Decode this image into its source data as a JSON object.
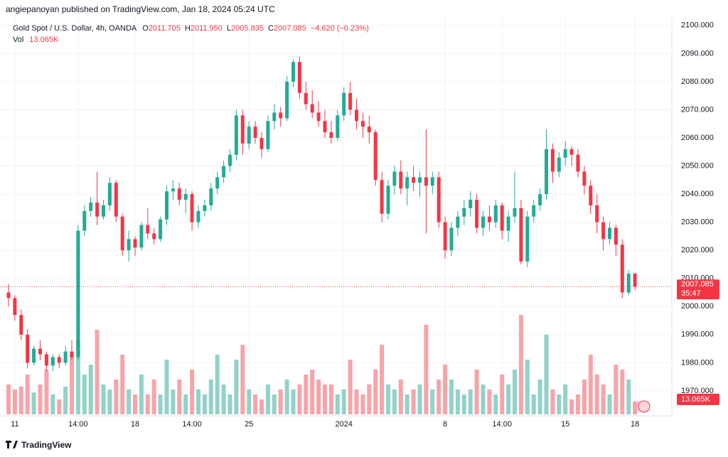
{
  "published": "angiepanoyan published on TradingView.com, Jan 18, 2024 05:24 UTC",
  "footer": "TradingView",
  "chart_data": {
    "type": "candlestick",
    "symbol": "Gold Spot / U.S. Dollar, 4h, OANDA",
    "legend": [
      {
        "key": "O",
        "value": "2011.705"
      },
      {
        "key": "H",
        "value": "2011.950"
      },
      {
        "key": "L",
        "value": "2005.835"
      },
      {
        "key": "C",
        "value": "2007.085"
      }
    ],
    "change": "−4.620 (−0.23%)",
    "volume_legend": {
      "key": "Vol",
      "value": "13.065K"
    },
    "last_price_label": "2007.085",
    "countdown": "35:47",
    "last_volume_label": "13.065K",
    "up_color": "#22ab94",
    "down_color": "#f23645",
    "up_volume_color": "#92d2c8",
    "down_volume_color": "#f7a4a8",
    "grid": true,
    "ylim": [
      1962.9,
      2103.5
    ],
    "yticks": [
      {
        "value": 1970,
        "label": "1970.000"
      },
      {
        "value": 1980,
        "label": "1980.000"
      },
      {
        "value": 1990,
        "label": "1990.000"
      },
      {
        "value": 2000,
        "label": "2000.000"
      },
      {
        "value": 2010,
        "label": "2010.000"
      },
      {
        "value": 2020,
        "label": "2020.000"
      },
      {
        "value": 2030,
        "label": "2030.000"
      },
      {
        "value": 2040,
        "label": "2040.000"
      },
      {
        "value": 2050,
        "label": "2050.000"
      },
      {
        "value": 2060,
        "label": "2060.000"
      },
      {
        "value": 2070,
        "label": "2070.000"
      },
      {
        "value": 2080,
        "label": "2080.000"
      },
      {
        "value": 2090,
        "label": "2090.000"
      },
      {
        "value": 2100,
        "label": "2100.000"
      }
    ],
    "categories": [
      null,
      "11",
      null,
      null,
      null,
      null,
      null,
      null,
      null,
      null,
      null,
      "14:00",
      null,
      null,
      null,
      null,
      null,
      null,
      null,
      null,
      "18",
      null,
      null,
      null,
      null,
      null,
      null,
      null,
      null,
      "14:00",
      null,
      null,
      null,
      null,
      null,
      null,
      null,
      null,
      "25",
      null,
      null,
      null,
      null,
      null,
      null,
      null,
      null,
      null,
      null,
      null,
      null,
      null,
      null,
      "2024",
      null,
      null,
      null,
      null,
      null,
      null,
      null,
      null,
      null,
      null,
      null,
      null,
      null,
      null,
      null,
      "8",
      null,
      null,
      null,
      null,
      null,
      null,
      null,
      null,
      "14:00",
      null,
      null,
      null,
      null,
      null,
      null,
      null,
      null,
      null,
      "15",
      null,
      null,
      null,
      null,
      null,
      null,
      null,
      null,
      null,
      null,
      "18"
    ],
    "open": [
      2005,
      2003,
      1997,
      1990,
      1980,
      1985,
      1983,
      1979,
      1982,
      1980,
      1984,
      1982,
      2027,
      2034,
      2037,
      2032,
      2036,
      2044,
      2032,
      2020,
      2024,
      2021,
      2029,
      2026,
      2024,
      2031,
      2041,
      2042,
      2038,
      2040,
      2030,
      2034,
      2036,
      2042,
      2046,
      2050,
      2054,
      2068,
      2058,
      2064,
      2060,
      2056,
      2066,
      2069,
      2067,
      2080,
      2087,
      2076,
      2072,
      2069,
      2066,
      2062,
      2060,
      2068,
      2076,
      2070,
      2066,
      2064,
      2062,
      2045,
      2033,
      2043,
      2048,
      2042,
      2046,
      2044,
      2046,
      2043,
      2046,
      2030,
      2020,
      2028,
      2032,
      2035,
      2038,
      2028,
      2032,
      2030,
      2036,
      2027,
      2032,
      2035,
      2016,
      2032,
      2036,
      2040,
      2056,
      2048,
      2053,
      2056,
      2054,
      2048,
      2043,
      2036,
      2030,
      2024,
      2028,
      2022,
      2005,
      2011.705
    ],
    "high": [
      2008,
      2004,
      1999,
      1992,
      1986,
      1988,
      1984,
      1983,
      1983,
      1986,
      1988,
      2029,
      2036,
      2039,
      2048,
      2038,
      2046,
      2045,
      2033,
      2027,
      2025,
      2030,
      2035,
      2028,
      2032,
      2043,
      2045,
      2044,
      2042,
      2041,
      2036,
      2038,
      2044,
      2048,
      2052,
      2056,
      2070,
      2070,
      2066,
      2066,
      2062,
      2068,
      2072,
      2071,
      2082,
      2088,
      2089,
      2080,
      2077,
      2073,
      2070,
      2066,
      2070,
      2078,
      2080,
      2074,
      2069,
      2068,
      2063,
      2048,
      2045,
      2050,
      2052,
      2048,
      2050,
      2048,
      2063,
      2048,
      2048,
      2032,
      2030,
      2034,
      2038,
      2041,
      2040,
      2034,
      2036,
      2038,
      2037,
      2034,
      2048,
      2038,
      2034,
      2038,
      2042,
      2063,
      2058,
      2055,
      2059,
      2057,
      2056,
      2050,
      2045,
      2040,
      2032,
      2030,
      2029,
      2024,
      2013,
      2011.95
    ],
    "low": [
      2000,
      1995,
      1988,
      1978,
      1979,
      1981,
      1977,
      1977,
      1978,
      1979,
      1981,
      1981,
      2025,
      2032,
      2029,
      2031,
      2034,
      2030,
      2018,
      2016,
      2018,
      2020,
      2024,
      2022,
      2023,
      2029,
      2038,
      2036,
      2033,
      2027,
      2028,
      2032,
      2034,
      2040,
      2044,
      2048,
      2052,
      2054,
      2056,
      2058,
      2053,
      2055,
      2063,
      2064,
      2066,
      2078,
      2074,
      2070,
      2067,
      2064,
      2060,
      2058,
      2059,
      2066,
      2068,
      2063,
      2060,
      2058,
      2043,
      2030,
      2031,
      2040,
      2040,
      2036,
      2041,
      2039,
      2026,
      2040,
      2028,
      2017,
      2018,
      2025,
      2029,
      2032,
      2026,
      2025,
      2027,
      2028,
      2024,
      2023,
      2030,
      2015,
      2014,
      2030,
      2034,
      2038,
      2044,
      2046,
      2050,
      2050,
      2046,
      2040,
      2033,
      2026,
      2020,
      2022,
      2018,
      2003,
      2004,
      2005.835
    ],
    "close": [
      2003,
      1997,
      1990,
      1980,
      1985,
      1983,
      1979,
      1982,
      1980,
      1984,
      1982,
      2027,
      2034,
      2037,
      2032,
      2036,
      2044,
      2032,
      2020,
      2024,
      2021,
      2029,
      2026,
      2024,
      2031,
      2041,
      2042,
      2038,
      2040,
      2030,
      2034,
      2036,
      2042,
      2046,
      2050,
      2054,
      2068,
      2058,
      2064,
      2060,
      2056,
      2066,
      2069,
      2067,
      2080,
      2087,
      2076,
      2072,
      2069,
      2066,
      2062,
      2060,
      2068,
      2076,
      2070,
      2066,
      2064,
      2062,
      2045,
      2033,
      2043,
      2048,
      2042,
      2046,
      2044,
      2046,
      2043,
      2046,
      2030,
      2020,
      2028,
      2032,
      2035,
      2038,
      2028,
      2032,
      2030,
      2036,
      2027,
      2032,
      2035,
      2016,
      2032,
      2036,
      2040,
      2056,
      2048,
      2053,
      2056,
      2054,
      2048,
      2043,
      2036,
      2030,
      2024,
      2028,
      2022,
      2005,
      2011.705,
      2007.085
    ],
    "volume": [
      30,
      25,
      28,
      40,
      22,
      30,
      45,
      20,
      15,
      28,
      60,
      75,
      40,
      50,
      85,
      30,
      25,
      35,
      60,
      25,
      20,
      40,
      20,
      35,
      20,
      55,
      25,
      35,
      20,
      45,
      25,
      20,
      35,
      60,
      30,
      20,
      55,
      70,
      25,
      20,
      15,
      30,
      20,
      25,
      35,
      25,
      30,
      40,
      45,
      35,
      30,
      30,
      20,
      25,
      55,
      25,
      20,
      30,
      45,
      70,
      30,
      25,
      35,
      20,
      25,
      30,
      90,
      25,
      35,
      50,
      35,
      25,
      20,
      25,
      45,
      30,
      25,
      20,
      40,
      30,
      45,
      100,
      55,
      20,
      35,
      80,
      25,
      20,
      30,
      15,
      20,
      35,
      60,
      40,
      30,
      20,
      50,
      45,
      35,
      13.065
    ]
  }
}
